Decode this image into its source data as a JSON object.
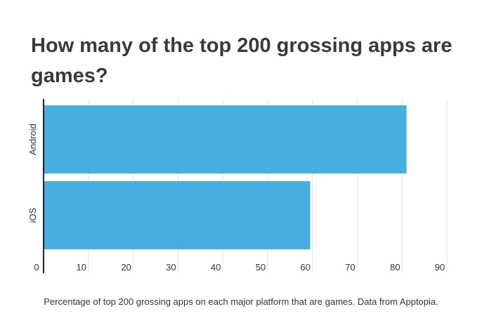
{
  "chart_data": {
    "type": "bar",
    "orientation": "horizontal",
    "title": "How many of the top 200 grossing apps are games?",
    "caption": "Percentage of top 200 grossing apps on each major platform that are games. Data from Apptopia.",
    "categories": [
      "Android",
      "iOS"
    ],
    "values": [
      81,
      59.5
    ],
    "xlim": [
      0,
      90
    ],
    "xticks": [
      0,
      10,
      20,
      30,
      40,
      50,
      60,
      70,
      80,
      90
    ],
    "grid": true,
    "bar_color": "#47afdf"
  }
}
